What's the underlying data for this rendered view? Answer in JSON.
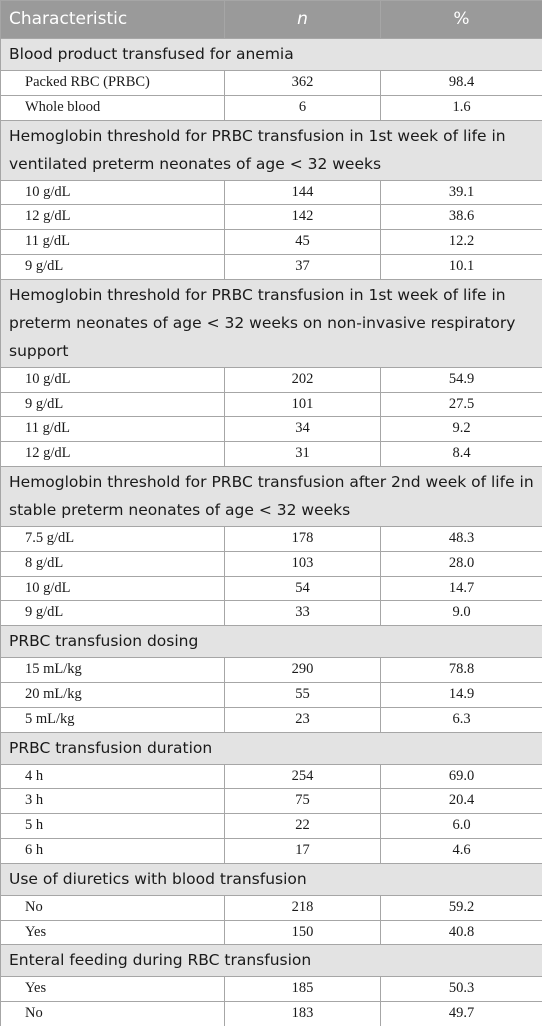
{
  "header": [
    "Characteristic",
    "n",
    "%"
  ],
  "sections": [
    {
      "title": "Blood product transfused for anemia",
      "rows": [
        [
          "Packed RBC (PRBC)",
          "362",
          "98.4"
        ],
        [
          "Whole blood",
          "6",
          "1.6"
        ]
      ]
    },
    {
      "title": "Hemoglobin threshold for PRBC transfusion in 1st week of life in ventilated preterm neonates of age < 32 weeks",
      "rows": [
        [
          "10 g/dL",
          "144",
          "39.1"
        ],
        [
          "12 g/dL",
          "142",
          "38.6"
        ],
        [
          "11 g/dL",
          "45",
          "12.2"
        ],
        [
          "9 g/dL",
          "37",
          "10.1"
        ]
      ]
    },
    {
      "title": "Hemoglobin threshold for PRBC transfusion in 1st week of life in preterm neonates of age < 32 weeks on non-invasive respiratory support",
      "rows": [
        [
          "10 g/dL",
          "202",
          "54.9"
        ],
        [
          "9 g/dL",
          "101",
          "27.5"
        ],
        [
          "11 g/dL",
          "34",
          "9.2"
        ],
        [
          "12 g/dL",
          "31",
          "8.4"
        ]
      ]
    },
    {
      "title": "Hemoglobin threshold for PRBC transfusion after 2nd week of life in stable preterm neonates of age < 32 weeks",
      "rows": [
        [
          "7.5 g/dL",
          "178",
          "48.3"
        ],
        [
          "8 g/dL",
          "103",
          "28.0"
        ],
        [
          "10 g/dL",
          "54",
          "14.7"
        ],
        [
          "9 g/dL",
          "33",
          "9.0"
        ]
      ]
    },
    {
      "title": "PRBC transfusion dosing",
      "rows": [
        [
          "15 mL/kg",
          "290",
          "78.8"
        ],
        [
          "20 mL/kg",
          "55",
          "14.9"
        ],
        [
          "5 mL/kg",
          "23",
          "6.3"
        ]
      ]
    },
    {
      "title": "PRBC transfusion duration",
      "rows": [
        [
          "4 h",
          "254",
          "69.0"
        ],
        [
          "3 h",
          "75",
          "20.4"
        ],
        [
          "5 h",
          "22",
          "6.0"
        ],
        [
          "6 h",
          "17",
          "4.6"
        ]
      ]
    },
    {
      "title": "Use of diuretics with blood transfusion",
      "rows": [
        [
          "No",
          "218",
          "59.2"
        ],
        [
          "Yes",
          "150",
          "40.8"
        ]
      ]
    },
    {
      "title": "Enteral feeding during RBC transfusion",
      "rows": [
        [
          "Yes",
          "185",
          "50.3"
        ],
        [
          "No",
          "183",
          "49.7"
        ]
      ]
    }
  ]
}
